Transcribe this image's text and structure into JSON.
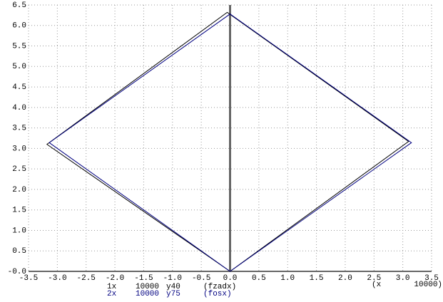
{
  "chart_data": {
    "type": "line",
    "xlabel": "(x       10000)",
    "xlim": [
      -3.5,
      3.5
    ],
    "xticks": [
      -3.5,
      {
        "value": -3,
        "label": "-3.0"
      },
      -2.5,
      {
        "value": -2,
        "label": "-2.0"
      },
      -1.5,
      {
        "value": -1,
        "label": "-1.0"
      },
      -0.5,
      {
        "value": 0,
        "label": "0.0"
      },
      0.5,
      {
        "value": 1,
        "label": "1.0"
      },
      1.5,
      {
        "value": 2,
        "label": "2.0"
      },
      2.5,
      {
        "value": 3,
        "label": "3.0"
      },
      3.5
    ],
    "ylim": [
      0,
      6.5
    ],
    "yticks": [
      {
        "value": 0,
        "label": "-0.0"
      },
      0.5,
      {
        "value": 1,
        "label": "1.0"
      },
      1.5,
      {
        "value": 2,
        "label": "2.0"
      },
      2.5,
      {
        "value": 3,
        "label": "3.0"
      },
      3.5,
      {
        "value": 4,
        "label": "4.0"
      },
      4.5,
      {
        "value": 5,
        "label": "5.0"
      },
      5.5,
      {
        "value": 6,
        "label": "6.0"
      },
      6.5
    ],
    "grid": true,
    "series": [
      {
        "id": "1x",
        "x_scale": "10000",
        "y_label": "y40",
        "name": "(fzadx)",
        "color": "#000000",
        "x": [
          0,
          3.1,
          -0.05,
          -3.18,
          0
        ],
        "values": [
          0,
          3.17,
          6.32,
          3.1,
          0
        ]
      },
      {
        "id": "2x",
        "x_scale": "10000",
        "y_label": "y75",
        "name": "(fosx)",
        "color": "#000080",
        "x": [
          0,
          3.15,
          0,
          -3.14,
          0
        ],
        "values": [
          0,
          3.14,
          6.28,
          3.14,
          0
        ]
      }
    ]
  }
}
